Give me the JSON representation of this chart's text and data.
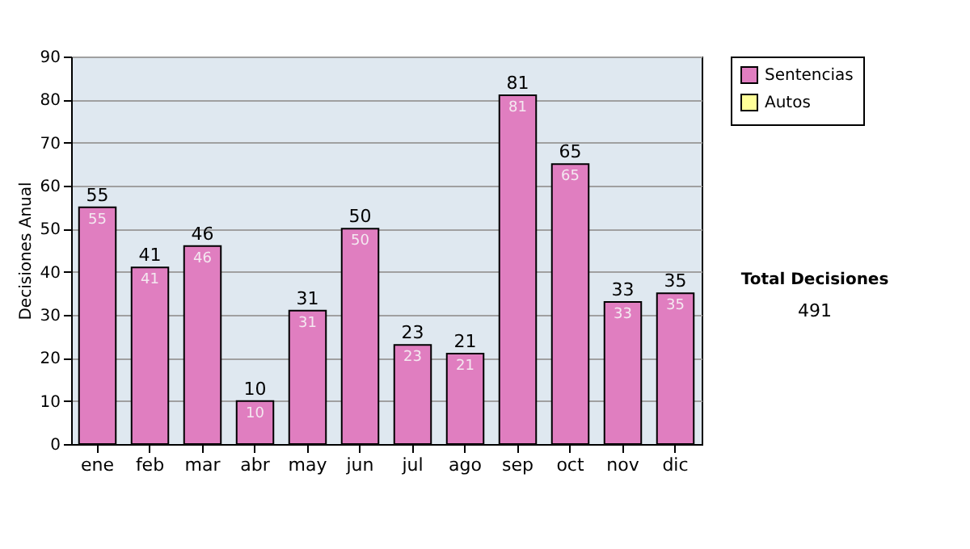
{
  "chart_data": {
    "type": "bar",
    "stacked": true,
    "ylabel": "Decisiones Anual",
    "categories": [
      "ene",
      "feb",
      "mar",
      "abr",
      "may",
      "jun",
      "jul",
      "ago",
      "sep",
      "oct",
      "nov",
      "dic"
    ],
    "series": [
      {
        "name": "Sentencias",
        "color": "#e07ec0",
        "values": [
          55,
          41,
          46,
          10,
          31,
          50,
          23,
          21,
          81,
          65,
          33,
          35
        ],
        "value_labels": [
          "55",
          "41",
          "46",
          "10",
          "31",
          "50",
          "23",
          "21",
          "81",
          "65",
          "33",
          "35"
        ]
      },
      {
        "name": "Autos",
        "color": "#ffff99",
        "values": [
          0,
          0,
          0,
          0,
          0,
          0,
          0,
          0,
          0,
          0,
          0,
          0
        ]
      }
    ],
    "totals": [
      "55",
      "41",
      "46",
      "10",
      "31",
      "50",
      "23",
      "21",
      "81",
      "65",
      "33",
      "35"
    ],
    "ylim": [
      0,
      90
    ],
    "yticks": [
      0,
      10,
      20,
      30,
      40,
      50,
      60,
      70,
      80,
      90
    ],
    "grid": "y",
    "legend": "right",
    "annotations": [
      "Total Decisiones",
      "491"
    ]
  }
}
